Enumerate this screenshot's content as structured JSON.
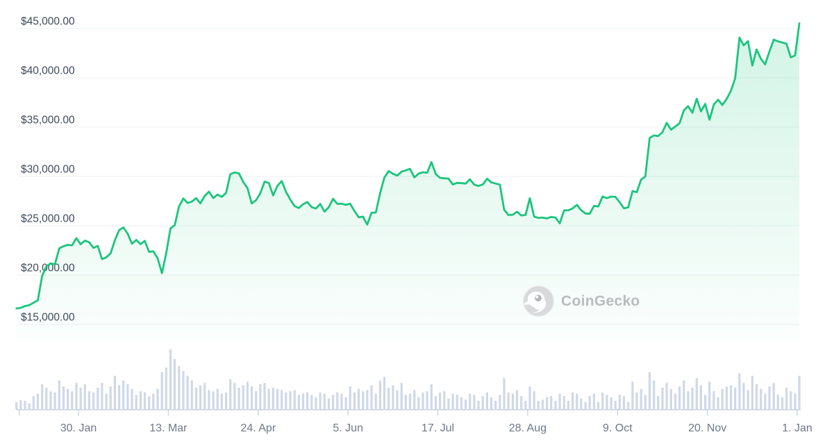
{
  "watermark": {
    "label": "CoinGecko"
  },
  "colors": {
    "line": "#1ac57c",
    "area_top": "rgba(26,197,124,0.20)",
    "area_bottom": "rgba(26,197,124,0.015)",
    "volume_bar": "#cfd8e7",
    "axis": "#c7d3e3",
    "grid": "#edf0f3",
    "y_label": "#3e4a5b",
    "x_label": "#6e7888",
    "watermark_gray": "#b9bcbf",
    "logo_circle": "#d8dadb",
    "logo_eye": "#b3b7ba"
  },
  "chart_data": {
    "type": "line",
    "title": "",
    "legend": "none",
    "grid": "horizontal-only",
    "x_range": [
      "2023-01-01",
      "2024-01-02"
    ],
    "y_axis": {
      "tick_labels": [
        "$45,000.00",
        "$40,000.00",
        "$35,000.00",
        "$30,000.00",
        "$25,000.00",
        "$20,000.00",
        "$15,000.00"
      ],
      "tick_values": [
        45000,
        40000,
        35000,
        30000,
        25000,
        20000,
        15000
      ],
      "unit": "USD"
    },
    "x_axis": {
      "ticks": [
        {
          "label": "30. Jan",
          "date": "2023-01-30"
        },
        {
          "label": "13. Mar",
          "date": "2023-03-13"
        },
        {
          "label": "24. Apr",
          "date": "2023-04-24"
        },
        {
          "label": "5. Jun",
          "date": "2023-06-05"
        },
        {
          "label": "17. Jul",
          "date": "2023-07-17"
        },
        {
          "label": "28. Aug",
          "date": "2023-08-28"
        },
        {
          "label": "9. Oct",
          "date": "2023-10-09"
        },
        {
          "label": "20. Nov",
          "date": "2023-11-20"
        },
        {
          "label": "1. Jan",
          "date": "2024-01-01"
        }
      ]
    },
    "series": [
      {
        "name": "price",
        "type": "line",
        "unit": "USD",
        "start_date": "2023-01-01",
        "step_days": 2,
        "values": [
          16620,
          16680,
          16860,
          16950,
          17200,
          17450,
          19930,
          20880,
          21190,
          21090,
          22710,
          22930,
          23060,
          23020,
          23740,
          23130,
          23500,
          23330,
          22760,
          22960,
          21630,
          21800,
          22200,
          23520,
          24570,
          24830,
          24180,
          23180,
          23560,
          23140,
          23470,
          22350,
          22410,
          21710,
          20190,
          22200,
          24750,
          25060,
          26970,
          27770,
          27310,
          27450,
          27810,
          27270,
          28030,
          28460,
          27810,
          28170,
          27930,
          28330,
          30230,
          30400,
          30310,
          29450,
          28820,
          27260,
          27590,
          28310,
          29480,
          29340,
          28080,
          29040,
          29530,
          28450,
          27660,
          27000,
          26800,
          27190,
          27410,
          26890,
          26750,
          27220,
          26440,
          26870,
          27740,
          27220,
          27250,
          27120,
          27240,
          26510,
          25850,
          25930,
          25120,
          26330,
          26340,
          28320,
          29890,
          30550,
          30270,
          30090,
          30480,
          30620,
          30770,
          29910,
          30290,
          30420,
          30380,
          31460,
          30250,
          29860,
          29810,
          29790,
          29180,
          29350,
          29320,
          29280,
          29710,
          29170,
          29040,
          29180,
          29770,
          29400,
          29280,
          29170,
          26630,
          26090,
          26120,
          26430,
          26050,
          26090,
          27800,
          25930,
          25800,
          25830,
          25750,
          25900,
          25830,
          25250,
          26560,
          26570,
          26760,
          27120,
          26580,
          26250,
          26220,
          27020,
          26960,
          27970,
          27800,
          27960,
          27930,
          27390,
          26760,
          26870,
          28520,
          28410,
          29680,
          30000,
          33900,
          34160,
          34090,
          34500,
          35440,
          34730,
          35060,
          35400,
          36700,
          37130,
          36460,
          37880,
          36590,
          37360,
          35750,
          37290,
          37780,
          37250,
          37860,
          38690,
          39970,
          44080,
          43290,
          43720,
          41240,
          42870,
          41940,
          41360,
          42660,
          43870,
          43700,
          43580,
          43450,
          42070,
          42270,
          45520
        ]
      },
      {
        "name": "volume",
        "type": "bar",
        "unit": "relative-height-percent (no axis labels shown)",
        "start_date": "2023-01-01",
        "step_days": 2,
        "values": [
          12,
          15,
          14,
          10,
          22,
          26,
          42,
          36,
          30,
          28,
          48,
          38,
          34,
          30,
          44,
          36,
          42,
          30,
          28,
          36,
          44,
          26,
          38,
          56,
          40,
          48,
          42,
          34,
          24,
          30,
          28,
          22,
          26,
          34,
          62,
          70,
          100,
          84,
          72,
          64,
          56,
          48,
          36,
          40,
          44,
          32,
          30,
          34,
          26,
          28,
          50,
          44,
          36,
          40,
          46,
          38,
          30,
          42,
          44,
          34,
          36,
          34,
          32,
          28,
          30,
          32,
          24,
          26,
          28,
          24,
          20,
          28,
          26,
          18,
          24,
          28,
          26,
          20,
          38,
          28,
          34,
          30,
          32,
          40,
          26,
          48,
          54,
          36,
          40,
          32,
          44,
          24,
          26,
          32,
          20,
          28,
          30,
          42,
          22,
          28,
          30,
          18,
          26,
          24,
          20,
          16,
          26,
          24,
          14,
          22,
          28,
          20,
          14,
          24,
          52,
          28,
          26,
          32,
          22,
          14,
          38,
          30,
          14,
          16,
          20,
          22,
          14,
          26,
          22,
          14,
          28,
          26,
          18,
          12,
          22,
          26,
          12,
          28,
          24,
          20,
          14,
          24,
          22,
          12,
          46,
          28,
          34,
          24,
          62,
          48,
          22,
          36,
          44,
          34,
          26,
          38,
          48,
          30,
          36,
          52,
          40,
          24,
          46,
          30,
          20,
          34,
          38,
          40,
          36,
          60,
          44,
          32,
          56,
          42,
          34,
          26,
          38,
          44,
          24,
          20,
          36,
          30,
          26,
          56
        ]
      }
    ]
  }
}
